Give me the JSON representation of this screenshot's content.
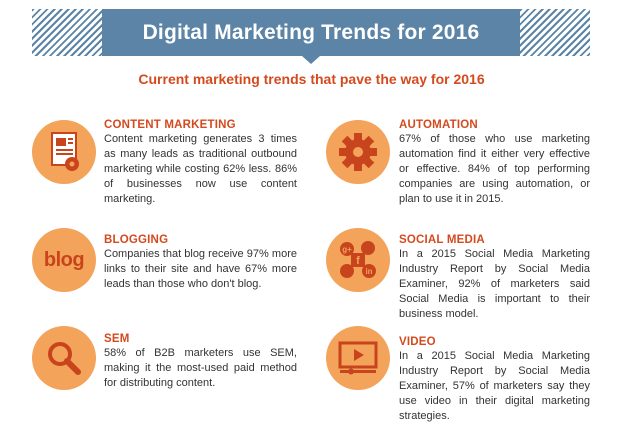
{
  "header": {
    "title": "Digital Marketing Trends for 2016",
    "subtitle": "Current marketing trends that pave the way for 2016"
  },
  "colors": {
    "banner": "#5b84a6",
    "accent_text": "#d44a1f",
    "icon_circle": "#f4a35a",
    "icon_dark": "#c8441c"
  },
  "items": [
    {
      "title": "CONTENT MARKETING",
      "icon": "document-gear-icon",
      "text": "Content marketing generates 3 times as many leads as traditional outbound marketing while costing 62% less. 86% of businesses now use content marketing."
    },
    {
      "title": "AUTOMATION",
      "icon": "gear-icon",
      "text": "67% of those who use marketing automation find it either very effective or effective. 84% of top performing companies are using automation, or plan to use it in 2015."
    },
    {
      "title": "BLOGGING",
      "icon": "blog-icon",
      "icon_label": "blog",
      "text": "Companies that blog receive 97% more links to their site and have 67% more leads than those who don't blog."
    },
    {
      "title": "SOCIAL MEDIA",
      "icon": "social-media-icon",
      "text": "In a 2015 Social Media Marketing Industry Report by Social Media Examiner, 92% of marketers said Social Media is important to their business model."
    },
    {
      "title": "SEM",
      "icon": "magnifier-icon",
      "text": "58% of B2B marketers use SEM, making it the most-used paid method for distributing content."
    },
    {
      "title": "VIDEO",
      "icon": "video-player-icon",
      "text": "In a 2015 Social Media Marketing Industry Report by Social Media Examiner, 57% of  marketers say they use video in their digital marketing strategies."
    }
  ]
}
